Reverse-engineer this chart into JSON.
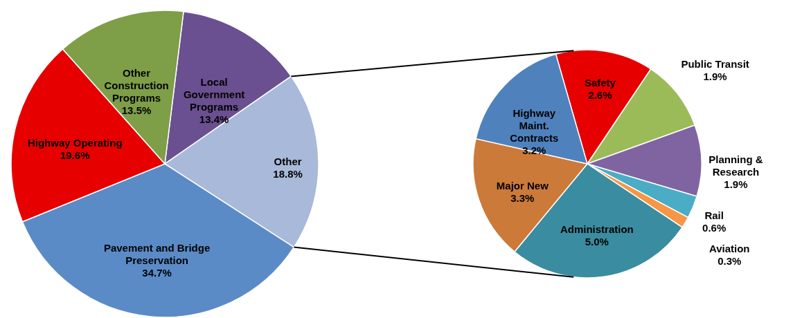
{
  "chart_data": [
    {
      "type": "pie",
      "categories": [
        "Local\nGovernment\nPrograms",
        "Other",
        "Pavement and Bridge\nPreservation",
        "Highway Operating",
        "Other\nConstruction\nPrograms"
      ],
      "values": [
        13.4,
        18.8,
        34.7,
        19.6,
        13.5
      ],
      "value_labels": [
        "13.4%",
        "18.8%",
        "34.7%",
        "19.6%",
        "13.5%"
      ],
      "colors": [
        "#6a5090",
        "#a9b9d9",
        "#5b8bc6",
        "#e60000",
        "#7e9e48"
      ]
    },
    {
      "type": "pie",
      "categories": [
        "Safety",
        "Public Transit",
        "Planning &\nResearch",
        "Rail",
        "Aviation",
        "Administration",
        "Major New",
        "Highway\nMaint.\nContracts"
      ],
      "values": [
        2.6,
        1.9,
        1.9,
        0.6,
        0.3,
        5.0,
        3.3,
        3.2
      ],
      "value_labels": [
        "2.6%",
        "1.9%",
        "1.9%",
        "0.6%",
        "0.3%",
        "5.0%",
        "3.3%",
        "3.2%"
      ],
      "colors": [
        "#e60000",
        "#9bbb59",
        "#8064a2",
        "#4bacc6",
        "#f79646",
        "#3a8ca0",
        "#cc7a3a",
        "#4f81bd"
      ]
    }
  ]
}
